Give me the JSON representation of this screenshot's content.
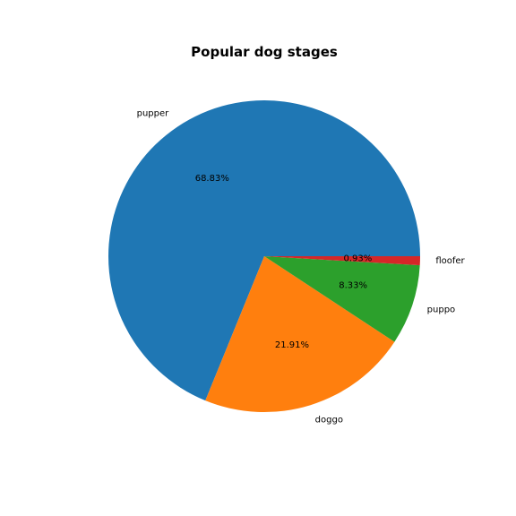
{
  "chart_data": {
    "type": "pie",
    "title": "Popular dog stages",
    "categories": [
      "pupper",
      "doggo",
      "puppo",
      "floofer"
    ],
    "values": [
      68.83,
      21.91,
      8.33,
      0.93
    ],
    "percent_labels": [
      "68.83%",
      "21.91%",
      "8.33%",
      "0.93%"
    ],
    "colors": [
      "#1f77b4",
      "#ff7f0e",
      "#2ca02c",
      "#d62728"
    ],
    "start_angle_deg": 0,
    "direction": "counterclockwise"
  }
}
